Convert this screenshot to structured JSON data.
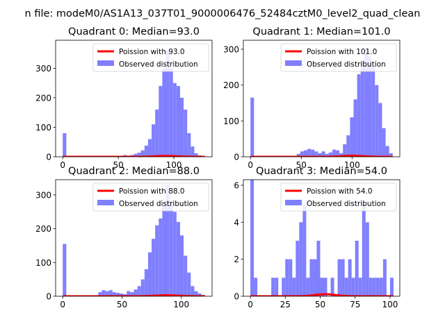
{
  "figure": {
    "suptitle": "n file: modeM0/AS1A13_037T01_9000006476_52484cztM0_level2_quad_clean"
  },
  "colors": {
    "poisson_line": "#ff0000",
    "observed_bars": "#8080ff",
    "axes": "#000000",
    "background": "#ffffff"
  },
  "chart_data": [
    {
      "type": "bar",
      "title": "Quadrant 0: Median=93.0",
      "median": 93.0,
      "legend": {
        "position": "top-right",
        "line_label": "Poission with 93.0",
        "bar_label": "Observed distribution"
      },
      "xlim": [
        -6.4,
        134.4
      ],
      "ylim": [
        0,
        395
      ],
      "xticks": [
        0,
        50,
        100
      ],
      "yticks": [
        0,
        100,
        200,
        300
      ],
      "xlabel": "",
      "ylabel": "",
      "poisson_scale": 3.15,
      "histogram": {
        "bin_edges": [
          0,
          3.2,
          6.4,
          9.6,
          12.8,
          16,
          19.2,
          22.4,
          25.6,
          28.8,
          32,
          35.2,
          38.4,
          41.6,
          44.8,
          48,
          51.2,
          54.4,
          57.6,
          60.8,
          64,
          67.2,
          70.4,
          73.6,
          76.8,
          80,
          83.2,
          86.4,
          89.6,
          92.8,
          96,
          99.2,
          102.4,
          105.6,
          108.8,
          112,
          115.2,
          118.4,
          121.6,
          124.8,
          128
        ],
        "counts": [
          80,
          0,
          0,
          0,
          0,
          0,
          0,
          0,
          0,
          0,
          0,
          0,
          0,
          0,
          0,
          0,
          0,
          6,
          4,
          6,
          10,
          14,
          22,
          38,
          60,
          110,
          160,
          240,
          300,
          360,
          300,
          250,
          240,
          200,
          160,
          80,
          35,
          12,
          5,
          2
        ]
      }
    },
    {
      "type": "bar",
      "title": "Quadrant 1: Median=101.0",
      "median": 101.0,
      "legend": {
        "position": "top-right",
        "line_label": "Poission with 101.0",
        "bar_label": "Observed distribution"
      },
      "xlim": [
        -7,
        147
      ],
      "ylim": [
        0,
        325
      ],
      "xticks": [
        0,
        50,
        100
      ],
      "yticks": [
        0,
        100,
        200,
        300
      ],
      "xlabel": "",
      "ylabel": "",
      "poisson_scale": 3.1,
      "histogram": {
        "bin_edges": [
          0,
          3.5,
          7,
          10.5,
          14,
          17.5,
          21,
          24.5,
          28,
          31.5,
          35,
          38.5,
          42,
          45.5,
          49,
          52.5,
          56,
          59.5,
          63,
          66.5,
          70,
          73.5,
          77,
          80.5,
          84,
          87.5,
          91,
          94.5,
          98,
          101.5,
          105,
          108.5,
          112,
          115.5,
          119,
          122.5,
          126,
          129.5,
          133,
          136.5,
          140
        ],
        "counts": [
          165,
          0,
          0,
          0,
          0,
          0,
          0,
          0,
          0,
          0,
          0,
          0,
          0,
          8,
          15,
          18,
          22,
          20,
          15,
          10,
          15,
          8,
          12,
          20,
          18,
          10,
          35,
          60,
          110,
          160,
          230,
          270,
          300,
          280,
          250,
          200,
          150,
          80,
          30,
          10
        ]
      }
    },
    {
      "type": "bar",
      "title": "Quadrant 2: Median=88.0",
      "median": 88.0,
      "legend": {
        "position": "top-right",
        "line_label": "Poission with 88.0",
        "bar_label": "Observed distribution"
      },
      "xlim": [
        -6,
        126
      ],
      "ylim": [
        0,
        345
      ],
      "xticks": [
        0,
        50,
        100
      ],
      "yticks": [
        0,
        100,
        200,
        300
      ],
      "xlabel": "",
      "ylabel": "",
      "poisson_scale": 3.0,
      "histogram": {
        "bin_edges": [
          0,
          3,
          6,
          9,
          12,
          15,
          18,
          21,
          24,
          27,
          30,
          33,
          36,
          39,
          42,
          45,
          48,
          51,
          54,
          57,
          60,
          63,
          66,
          69,
          72,
          75,
          78,
          81,
          84,
          87,
          90,
          93,
          96,
          99,
          102,
          105,
          108,
          111,
          114,
          117,
          120
        ],
        "counts": [
          155,
          0,
          0,
          0,
          0,
          0,
          0,
          0,
          0,
          0,
          12,
          18,
          15,
          18,
          12,
          10,
          8,
          6,
          15,
          12,
          20,
          30,
          50,
          80,
          130,
          170,
          210,
          230,
          270,
          330,
          280,
          250,
          220,
          180,
          120,
          70,
          30,
          15,
          8,
          4
        ]
      }
    },
    {
      "type": "bar",
      "title": "Quadrant 3: Median=54.0",
      "median": 54.0,
      "legend": {
        "position": "top-right",
        "line_label": "Poission with 54.0",
        "bar_label": "Observed distribution"
      },
      "xlim": [
        -5,
        107
      ],
      "ylim": [
        0,
        6.3
      ],
      "xticks": [
        0,
        25,
        50,
        75,
        100
      ],
      "yticks": [
        0,
        2,
        4,
        6
      ],
      "xlabel": "",
      "ylabel": "",
      "poisson_scale": 0.112,
      "histogram": {
        "bin_edges": [
          0,
          2.5,
          5,
          7.5,
          10,
          12.5,
          15,
          17.5,
          20,
          22.5,
          25,
          27.5,
          30,
          32.5,
          35,
          37.5,
          40,
          42.5,
          45,
          47.5,
          50,
          52.5,
          55,
          57.5,
          60,
          62.5,
          65,
          67.5,
          70,
          72.5,
          75,
          77.5,
          80,
          82.5,
          85,
          87.5,
          90,
          92.5,
          95,
          97.5,
          100,
          102.5
        ],
        "counts": [
          6.3,
          1,
          0,
          0,
          0,
          0,
          1,
          1,
          0,
          1,
          2,
          2,
          1,
          3,
          4,
          5,
          1,
          2,
          2,
          3,
          1,
          1,
          0,
          1,
          0,
          2,
          2,
          1,
          2,
          1,
          3,
          1,
          5,
          4,
          1,
          1,
          1,
          1,
          2,
          0,
          1
        ]
      }
    }
  ]
}
